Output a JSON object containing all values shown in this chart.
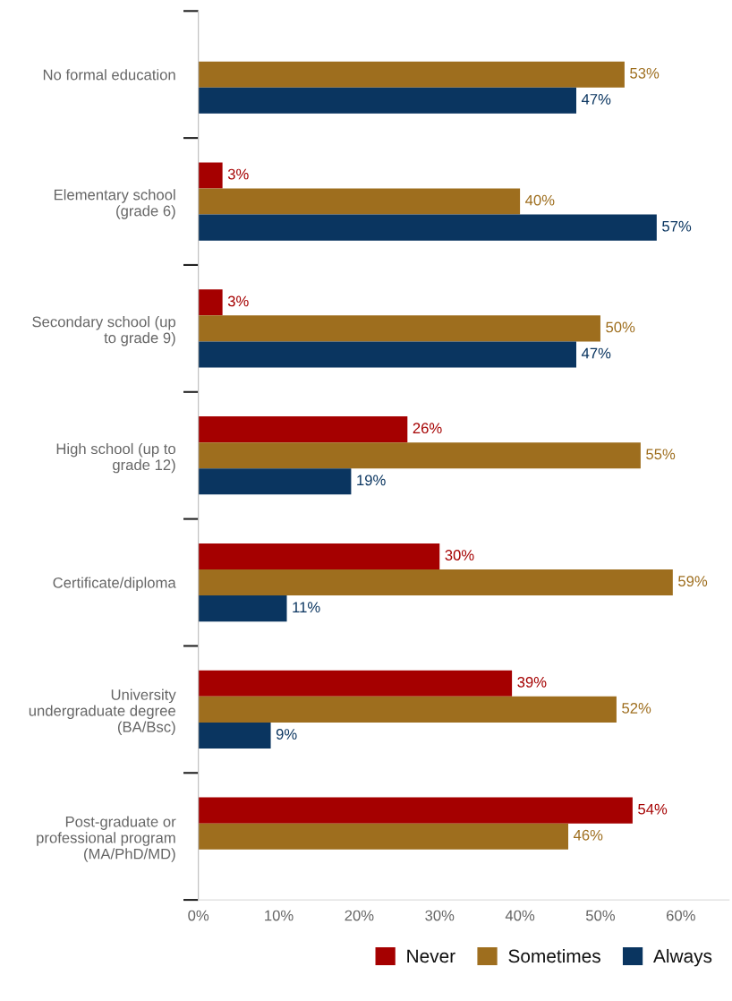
{
  "chart_data": {
    "type": "bar",
    "orientation": "horizontal",
    "categories": [
      "No formal education",
      "Elementary school\n(grade 6)",
      "Secondary school (up\nto grade 9)",
      "High school (up to\ngrade 12)",
      "Certificate/diploma",
      "University\nundergraduate degree\n(BA/Bsc)",
      "Post-graduate or\nprofessional program\n(MA/PhD/MD)"
    ],
    "series": [
      {
        "name": "Never",
        "color": "#a50000",
        "values": [
          null,
          3,
          3,
          26,
          30,
          39,
          54
        ],
        "value_labels": [
          null,
          "3%",
          "3%",
          "26%",
          "30%",
          "39%",
          "54%"
        ]
      },
      {
        "name": "Sometimes",
        "color": "#9e6e1e",
        "values": [
          53,
          40,
          50,
          55,
          59,
          52,
          46
        ],
        "value_labels": [
          "53%",
          "40%",
          "50%",
          "55%",
          "59%",
          "52%",
          "46%"
        ]
      },
      {
        "name": "Always",
        "color": "#0a3560",
        "values": [
          47,
          57,
          47,
          19,
          11,
          9,
          null
        ],
        "value_labels": [
          "47%",
          "57%",
          "47%",
          "19%",
          "11%",
          "9%",
          null
        ]
      }
    ],
    "xlim": [
      0,
      66
    ],
    "xticks": [
      {
        "value": 0,
        "label": "0%"
      },
      {
        "value": 10,
        "label": "10%"
      },
      {
        "value": 20,
        "label": "20%"
      },
      {
        "value": 30,
        "label": "30%"
      },
      {
        "value": 40,
        "label": "40%"
      },
      {
        "value": 50,
        "label": "50%"
      },
      {
        "value": 60,
        "label": "60%"
      }
    ],
    "grid": false,
    "legend": "bottom right"
  }
}
